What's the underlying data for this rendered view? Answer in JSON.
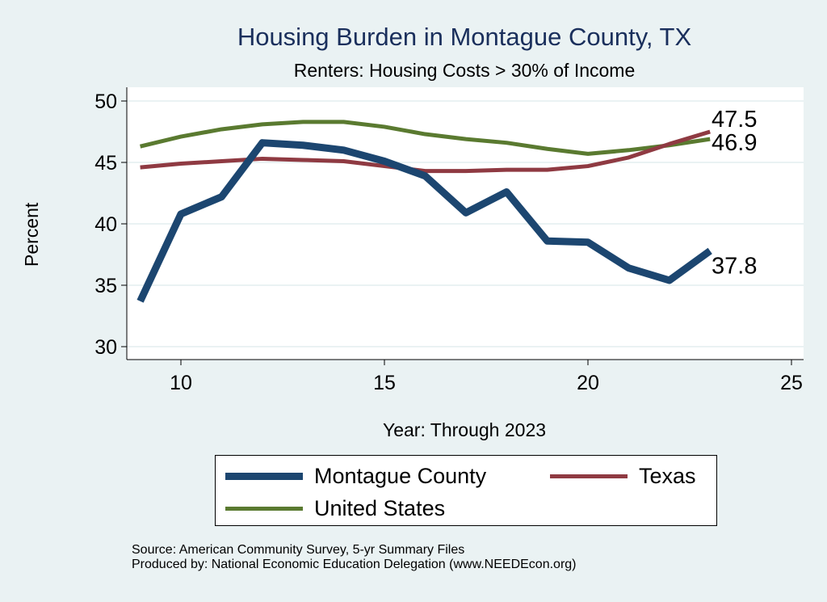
{
  "chart_data": {
    "type": "line",
    "title": "Housing Burden in Montague County, TX",
    "subtitle": "Renters: Housing Costs > 30% of Income",
    "xlabel": "Year: Through 2023",
    "ylabel": "Percent",
    "xlim": [
      8.3,
      25.3
    ],
    "ylim": [
      29.0,
      51.1
    ],
    "xticks": [
      10,
      15,
      20,
      25
    ],
    "yticks": [
      30,
      35,
      40,
      45,
      50
    ],
    "grid": true,
    "legend_position": "bottom",
    "x": [
      9,
      10,
      11,
      12,
      13,
      14,
      15,
      16,
      17,
      18,
      19,
      20,
      21,
      22,
      23
    ],
    "series": [
      {
        "name": "Montague County",
        "color": "#1c4670",
        "values": [
          33.7,
          40.8,
          42.2,
          46.6,
          46.4,
          46.0,
          45.1,
          43.9,
          40.9,
          42.6,
          38.6,
          38.5,
          36.4,
          35.4,
          37.8
        ],
        "end_label": "37.8"
      },
      {
        "name": "Texas",
        "color": "#8f3a42",
        "values": [
          44.6,
          44.9,
          45.1,
          45.3,
          45.2,
          45.1,
          44.7,
          44.3,
          44.3,
          44.4,
          44.4,
          44.7,
          45.4,
          46.5,
          47.5
        ],
        "end_label": "47.5"
      },
      {
        "name": "United States",
        "color": "#5a7a30",
        "values": [
          46.3,
          47.1,
          47.7,
          48.1,
          48.3,
          48.3,
          47.9,
          47.3,
          46.9,
          46.6,
          46.1,
          45.7,
          46.0,
          46.4,
          46.9
        ],
        "end_label": "46.9"
      }
    ]
  },
  "notes": {
    "source": "Source: American Community Survey, 5-yr Summary Files",
    "produced": "Produced by: National Economic Education Delegation (www.NEEDEcon.org)"
  }
}
